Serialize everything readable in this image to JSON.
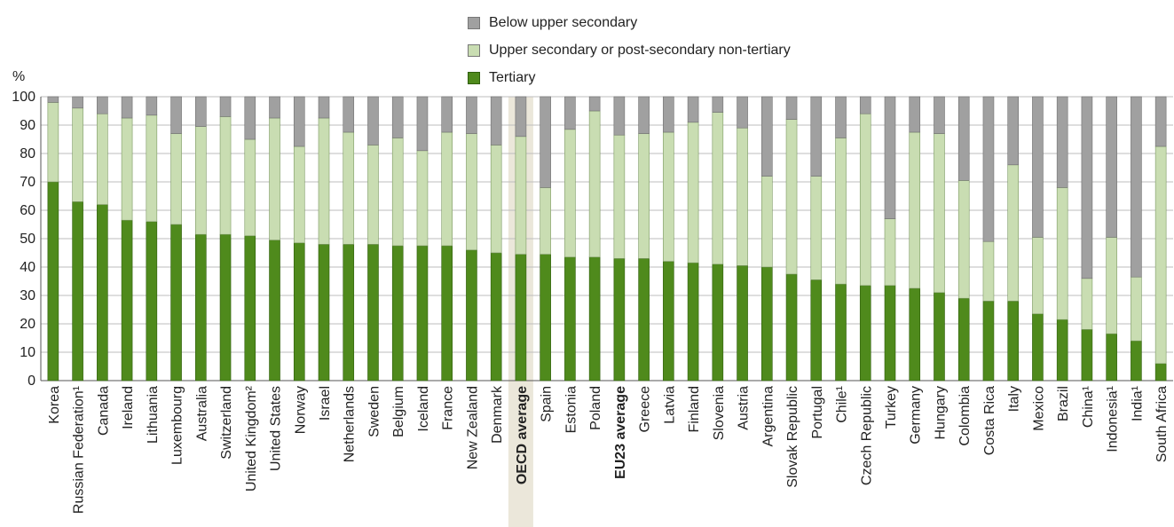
{
  "chart_data": {
    "type": "bar",
    "stacked": true,
    "ylabel": "%",
    "ylim": [
      0,
      100
    ],
    "yticks": [
      0,
      10,
      20,
      30,
      40,
      50,
      60,
      70,
      80,
      90,
      100
    ],
    "grid": true,
    "legend_position": "top",
    "categories": [
      "Korea",
      "Russian Federation¹",
      "Canada",
      "Ireland",
      "Lithuania",
      "Luxembourg",
      "Australia",
      "Switzerland",
      "United Kingdom²",
      "United States",
      "Norway",
      "Israel",
      "Netherlands",
      "Sweden",
      "Belgium",
      "Iceland",
      "France",
      "New Zealand",
      "Denmark",
      "OECD average",
      "Spain",
      "Estonia",
      "Poland",
      "EU23 average",
      "Greece",
      "Latvia",
      "Finland",
      "Slovenia",
      "Austria",
      "Argentina",
      "Slovak Republic",
      "Portugal",
      "Chile¹",
      "Czech Republic",
      "Turkey",
      "Germany",
      "Hungary",
      "Colombia",
      "Costa Rica",
      "Italy",
      "Mexico",
      "Brazil",
      "China¹",
      "Indonesia¹",
      "India¹",
      "South Africa"
    ],
    "bold_categories": [
      "OECD average",
      "EU23 average"
    ],
    "highlighted_category": "OECD average",
    "series": [
      {
        "name": "Tertiary",
        "color": "#4f8a1c",
        "values": [
          70,
          63,
          62,
          56.5,
          56,
          55,
          51.5,
          51.5,
          51,
          49.5,
          48.5,
          48,
          48,
          48,
          47.5,
          47.5,
          47.5,
          46,
          45,
          44.5,
          44.5,
          43.5,
          43.5,
          43,
          43,
          42,
          41.5,
          41,
          40.5,
          40,
          37.5,
          35.5,
          34,
          33.5,
          33.5,
          32.5,
          31,
          29,
          28,
          28,
          23.5,
          21.5,
          18,
          16.5,
          14,
          6
        ]
      },
      {
        "name": "Upper secondary or post-secondary non-tertiary",
        "color": "#c9ddb2",
        "values": [
          28,
          33,
          32,
          36,
          37.5,
          32,
          38,
          41.5,
          34,
          43,
          34,
          44.5,
          39.5,
          35,
          38,
          33.5,
          40,
          41,
          38,
          41.5,
          23.5,
          45,
          51.5,
          43.5,
          44,
          45.5,
          49.5,
          53.5,
          48.5,
          32,
          54.5,
          36.5,
          51.5,
          60.5,
          23.5,
          55,
          56,
          41.5,
          21,
          48,
          27,
          46.5,
          18,
          34,
          22.5,
          76.5
        ]
      },
      {
        "name": "Below upper secondary",
        "color": "#a0a0a0",
        "values": [
          2,
          4,
          6,
          7.5,
          6.5,
          13,
          10.5,
          7,
          15,
          7.5,
          17.5,
          7.5,
          12.5,
          17,
          14.5,
          19,
          12.5,
          13,
          17,
          14,
          32,
          11.5,
          5,
          13.5,
          13,
          12.5,
          9,
          5.5,
          11,
          28,
          8,
          28,
          14.5,
          6,
          43,
          12.5,
          13,
          29.5,
          51,
          24,
          49.5,
          32,
          64,
          49.5,
          63.5,
          17.5
        ]
      }
    ]
  }
}
